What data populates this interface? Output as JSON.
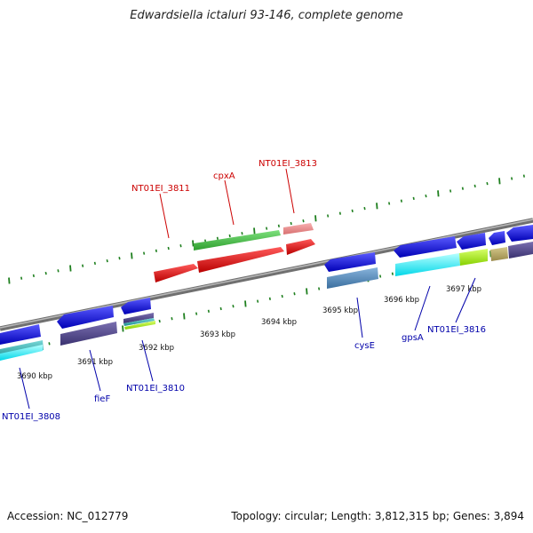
{
  "title": "Edwardsiella ictaluri 93-146, complete genome",
  "accession": "Accession: NC_012779",
  "summary": "Topology: circular; Length: 3,812,315 bp; Genes: 3,894",
  "colors": {
    "backbone": "#8c8c8c",
    "tick": "#1e7f1e",
    "label_forward": "#cc0000",
    "label_reverse": "#0000aa"
  },
  "kbp_labels": [
    "3690 kbp",
    "3691 kbp",
    "3692 kbp",
    "3693 kbp",
    "3694 kbp",
    "3695 kbp",
    "3696 kbp",
    "3697 kbp"
  ],
  "gene_labels": [
    {
      "text": "NT01EI_3811",
      "strand": "forward"
    },
    {
      "text": "cpxA",
      "strand": "forward"
    },
    {
      "text": "NT01EI_3813",
      "strand": "forward"
    },
    {
      "text": "NT01EI_3808",
      "strand": "reverse"
    },
    {
      "text": "fieF",
      "strand": "reverse"
    },
    {
      "text": "NT01EI_3810",
      "strand": "reverse"
    },
    {
      "text": "cysE",
      "strand": "reverse"
    },
    {
      "text": "gpsA",
      "strand": "reverse"
    },
    {
      "text": "NT01EI_3816",
      "strand": "reverse"
    }
  ]
}
